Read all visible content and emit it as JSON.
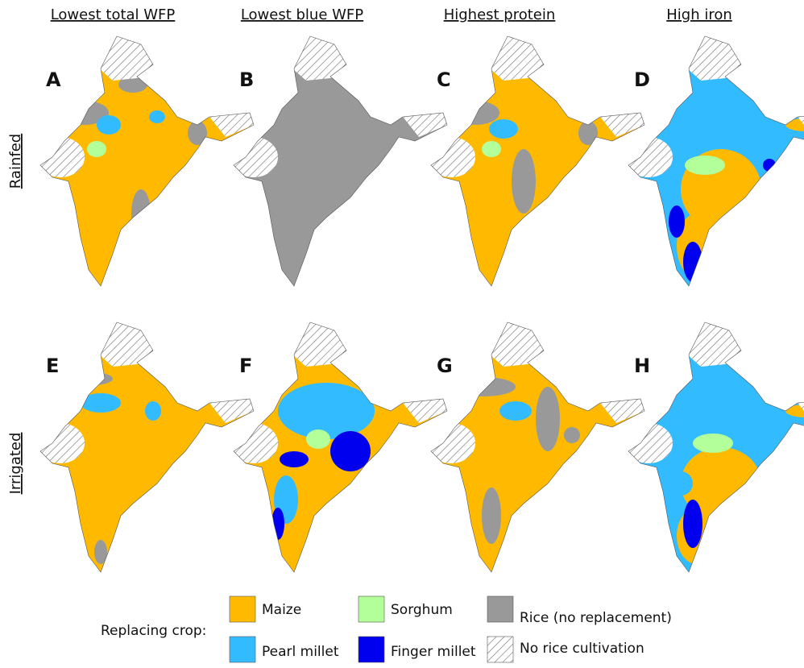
{
  "columns": [
    "Lowest total WFP",
    "Lowest blue WFP",
    "Highest protein",
    "High iron"
  ],
  "rows": [
    "Rainfed",
    "Irrigated"
  ],
  "panels": [
    "A",
    "B",
    "C",
    "D",
    "E",
    "F",
    "G",
    "H"
  ],
  "legend": {
    "title": "Replacing crop:",
    "items": [
      {
        "label": "Maize",
        "color": "#ffba00"
      },
      {
        "label": "Pearl millet",
        "color": "#33bbff"
      },
      {
        "label": "Sorghum",
        "color": "#b3ff99"
      },
      {
        "label": "Finger millet",
        "color": "#0000ee"
      },
      {
        "label": "Rice (no replacement)",
        "color": "#999999"
      },
      {
        "label": "No rice cultivation",
        "color": "#ffffff"
      }
    ]
  }
}
